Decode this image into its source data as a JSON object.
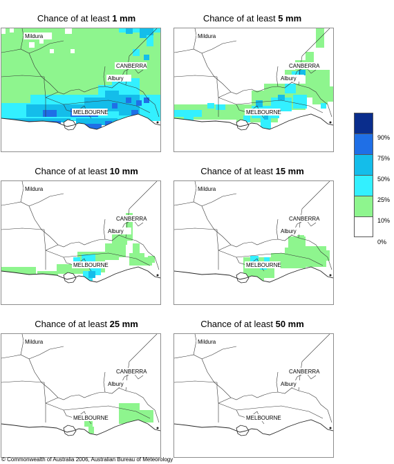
{
  "panels": [
    {
      "id": "p1",
      "title_prefix": "Chance of at least ",
      "threshold": "1 mm"
    },
    {
      "id": "p2",
      "title_prefix": "Chance of at least ",
      "threshold": "5 mm"
    },
    {
      "id": "p3",
      "title_prefix": "Chance of at least ",
      "threshold": "10 mm"
    },
    {
      "id": "p4",
      "title_prefix": "Chance of at least ",
      "threshold": "15 mm"
    },
    {
      "id": "p5",
      "title_prefix": "Chance of at least ",
      "threshold": "25 mm"
    },
    {
      "id": "p6",
      "title_prefix": "Chance of at least ",
      "threshold": "50 mm"
    }
  ],
  "places": {
    "mildura": "Mildura",
    "canberra": "CANBERRA",
    "albury": "Albury",
    "melbourne": "MELBOURNE"
  },
  "legend": {
    "labels": [
      "90%",
      "75%",
      "50%",
      "25%",
      "10%",
      "0%"
    ],
    "colors": [
      "#0a2d8c",
      "#1f6fe6",
      "#14bdea",
      "#33f0ff",
      "#8ef58e",
      "#ffffff"
    ]
  },
  "copyright": "© Commonwealth of Australia 2006, Australian Bureau of Meteorology"
}
